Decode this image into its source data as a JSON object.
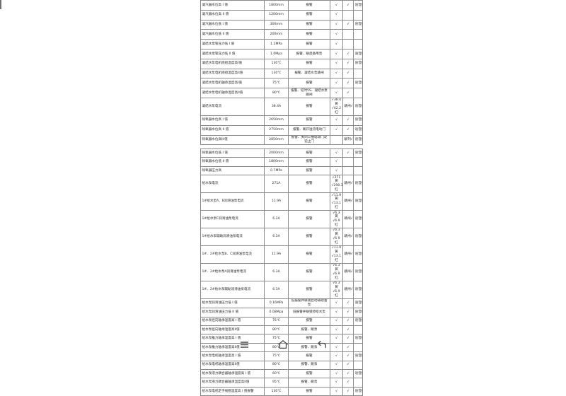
{
  "page": {
    "background": "#ffffff",
    "text_color": "#2b2b2b",
    "border_color": "#8a8a8a"
  },
  "tables": [
    {
      "name": "condenser-condensate-deaerator-setpoints",
      "col_names": [
        "param-name",
        "setpoint-value",
        "action",
        "screen-alarm-mark",
        "trip-mark",
        "voice-alarm-mark"
      ],
      "rows": [
        [
          "凝汽器水位高 I 值",
          "1800mm",
          "报警",
          "√",
          "√",
          "语音报警"
        ],
        [
          "凝汽器水位高 II 值",
          "1200mm",
          "报警",
          "√",
          "",
          ""
        ],
        [
          "凝汽器水位低 I 值",
          "300mm",
          "报警",
          "√",
          "√",
          "语音报警"
        ],
        [
          "凝汽器水位低 II 值",
          "200mm",
          "报警",
          "√",
          "",
          ""
        ],
        [
          "凝结水母管压力低 I 值",
          "1.2MPa",
          "报警",
          "√",
          "",
          ""
        ],
        [
          "凝结水母管压力低 II 值",
          "1.0Mpa",
          "报警、联启备用泵",
          "√",
          "√",
          "语音报警"
        ],
        [
          "凝结水泵电机绕组温度高I值",
          "130℃",
          "报警",
          "√",
          "√",
          "语音报警"
        ],
        [
          "凝结水泵电机绕组温度高II值",
          "130℃",
          "报警、凝结水泵跳闸",
          "√",
          "√",
          ""
        ],
        [
          "凝结水泵电机轴承温度高I值",
          "75℃",
          "报警",
          "√",
          "√",
          "语音报警"
        ],
        [
          "凝结水泵电机轴承温度高II值",
          "80℃",
          "报警、延时5S、凝结水泵跳闸",
          "√",
          "√",
          ""
        ],
        [
          "凝结水泵电流",
          "38.4A",
          "报警",
          "√38.4黄\n√42.2红",
          "跳闸√",
          "语音报警"
        ],
        [
          "除氧器水位高 I 值",
          "2650mm",
          "报警",
          "√",
          "√",
          "语音报警"
        ],
        [
          "除氧器水位高 II 值",
          "2750mm",
          "报警、联开溢流电动门",
          "√",
          "√",
          "语音报警"
        ],
        [
          "除氧器水位高III值",
          "2850mm",
          "报警、关闭三抽电动门及逆止门",
          "",
          "解列√",
          "语音报警"
        ]
      ]
    },
    {
      "name": "deaerator-feedwater-pump-setpoints",
      "col_names": [
        "param-name",
        "setpoint-value",
        "action",
        "screen-alarm-mark",
        "trip-mark",
        "voice-alarm-mark"
      ],
      "rows": [
        [
          "除氧器水位低 I 值",
          "2000mm",
          "报警",
          "√",
          "√",
          "语音报警"
        ],
        [
          "除氧器水位低 II 值",
          "1800mm",
          "报警",
          "√",
          "",
          ""
        ],
        [
          "除氧器压力高",
          "0.7MPa",
          "报警",
          "√",
          "",
          ""
        ],
        [
          "给水泵电流",
          "271A",
          "报警",
          "√271黄\n√298.1红",
          "跳闸√",
          "语音报警"
        ],
        [
          "1#给水泵A、B润滑油泵电流",
          "11.9A",
          "报警",
          "√11.9黄\n√13.1红",
          "跳闸√",
          "语音报警"
        ],
        [
          "1#给水泵C润滑油泵电流",
          "6.3A",
          "报警",
          "√6.3黄\n√6.9红",
          "跳闸√",
          "语音报警"
        ],
        [
          "1#给水泵辅助润滑油泵电流",
          "6.3A",
          "报警",
          "√6.3黄\n√6.9红",
          "跳闸√",
          "语音报警"
        ],
        [
          "1#、2#给水泵B、C润滑油泵电流",
          "11.9A",
          "报警",
          "√11.9黄\n√13.1红",
          "跳闸√",
          "语音报警"
        ],
        [
          "1#、2#给水泵A润滑油泵电流",
          "6.3A",
          "报警",
          "√6.3黄\n√6.9红",
          "跳闸√",
          "语音报警"
        ],
        [
          "1#、2#给水泵辅助润滑油泵电流",
          "6.3A",
          "报警",
          "√6.3黄\n√6.9红",
          "跳闸√",
          "语音报警"
        ],
        [
          "给水泵润滑油压力低 I 值",
          "0.16MPa",
          "低报警并联锁启动辅助油泵",
          "√",
          "√",
          "语音报警"
        ],
        [
          "给水泵润滑油压力低 II 值",
          "0.08Mpa",
          "低报警并联锁停给水泵",
          "√",
          "√",
          "语音报警"
        ],
        [
          "给水泵径向轴承温度高 I 值",
          "75℃",
          "报警",
          "√",
          "√",
          "语音报警"
        ],
        [
          "给水泵径向轴承温度高II值",
          "80℃",
          "报警、跳泵",
          "√",
          "√",
          ""
        ],
        [
          "给水泵推力轴承温度高 I 值",
          "75℃",
          "报警",
          "√",
          "√",
          "语音报警"
        ],
        [
          "给水泵推力轴承温度高II值",
          "80℃",
          "报警、跳泵",
          "√",
          "√",
          ""
        ],
        [
          "给水泵电机轴承温度高 I 值",
          "75℃",
          "报警",
          "√",
          "√",
          "语音报警"
        ],
        [
          "给水泵电机轴承温度高II值",
          "80℃",
          "报警、跳泵",
          "√",
          "√",
          ""
        ],
        [
          "给水泵液力耦合器轴承温度高 I 值",
          "60℃",
          "报警",
          "√",
          "√",
          "语音报警"
        ],
        [
          "给水泵液力耦合器轴承温度高II值",
          "95℃",
          "报警、跳泵",
          "√",
          "√",
          ""
        ],
        [
          "给水泵电机定子线圈温度高 I 值报警",
          "130℃",
          "报警",
          "√",
          "√",
          "语音报警"
        ]
      ]
    }
  ],
  "navbar": {
    "menu_icon": "hamburger-menu",
    "home_icon": "home",
    "back_icon": "back-arrow"
  }
}
